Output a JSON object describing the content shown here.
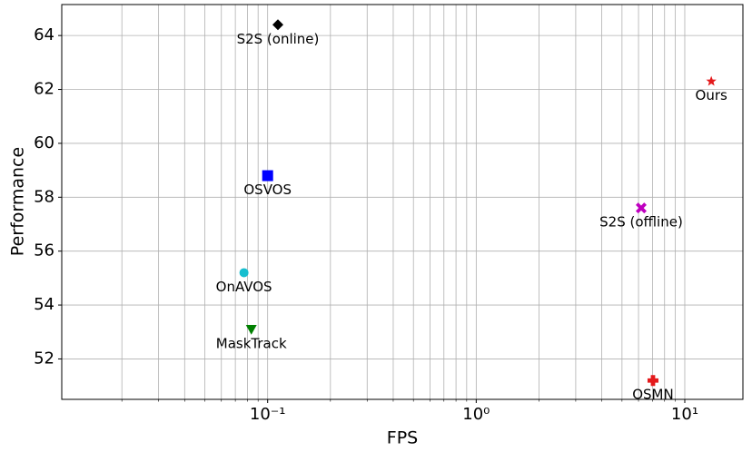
{
  "chart_data": {
    "type": "scatter",
    "xlabel": "FPS",
    "ylabel": "Performance",
    "xscale": "log",
    "grid": true,
    "xlim": [
      0.0103,
      19
    ],
    "ylim": [
      50.5,
      65.15
    ],
    "xticks": [
      {
        "value": 0.1,
        "label": "10⁻¹"
      },
      {
        "value": 1,
        "label": "10⁰"
      },
      {
        "value": 10,
        "label": "10¹"
      }
    ],
    "xminorticks": [
      0.02,
      0.03,
      0.04,
      0.05,
      0.06,
      0.07,
      0.08,
      0.09,
      0.2,
      0.3,
      0.4,
      0.5,
      0.6,
      0.7,
      0.8,
      0.9,
      2,
      3,
      4,
      5,
      6,
      7,
      8,
      9
    ],
    "yticks": [
      52,
      54,
      56,
      58,
      60,
      62,
      64
    ],
    "series": [
      {
        "name": "S2S (online)",
        "color": "#000000",
        "marker": "diamond",
        "x": [
          0.112
        ],
        "values": [
          64.4
        ]
      },
      {
        "name": "Ours",
        "color": "#e41a1c",
        "marker": "star",
        "x": [
          13.4
        ],
        "values": [
          62.3
        ]
      },
      {
        "name": "OSVOS",
        "color": "#0000ff",
        "marker": "square",
        "x": [
          0.1
        ],
        "values": [
          58.8
        ]
      },
      {
        "name": "S2S (offline)",
        "color": "#bf00bf",
        "marker": "x",
        "x": [
          6.18
        ],
        "values": [
          57.6
        ]
      },
      {
        "name": "OnAVOS",
        "color": "#17becf",
        "marker": "circle",
        "x": [
          0.077
        ],
        "values": [
          55.2
        ]
      },
      {
        "name": "MaskTrack",
        "color": "#007f00",
        "marker": "triangle-down",
        "x": [
          0.0835
        ],
        "values": [
          53.1
        ]
      },
      {
        "name": "OSMN",
        "color": "#e41a1c",
        "marker": "plus",
        "x": [
          7.04
        ],
        "values": [
          51.2
        ]
      }
    ]
  }
}
